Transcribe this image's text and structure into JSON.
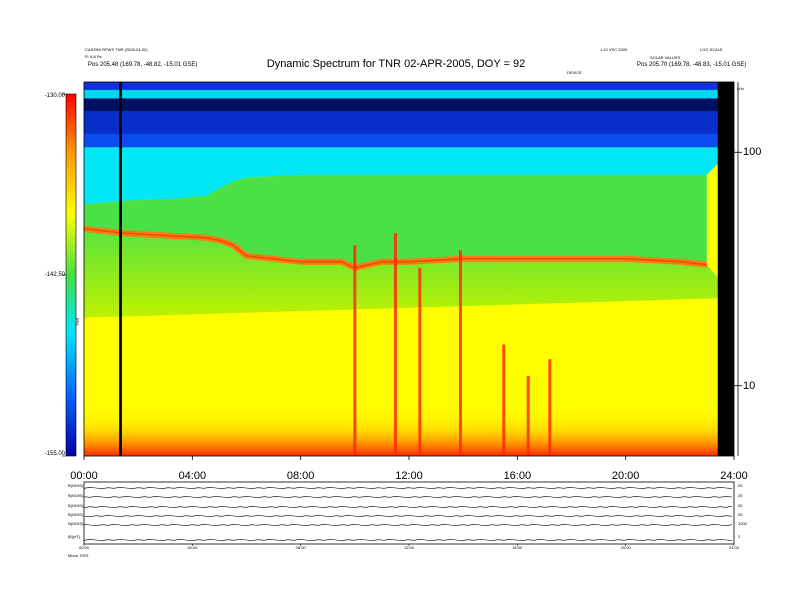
{
  "chart_data": {
    "type": "heatmap",
    "title": "Dynamic Spectrum for TNR 02-APR-2005, DOY = 92",
    "header_left": [
      "CASSINI RPWS TNR (2005-04-02)",
      "R: 8.8 Rs",
      "Pos  205.48 (169.78, -48.82, -15.01 GSE)"
    ],
    "header_right": [
      "1.10 VEC 2005",
      "LOG SCALE",
      "SOLAR VALUES",
      "Pos  205.70 (169.78, -48.83, -15.01 GSE)"
    ],
    "header_center_small": "DEVICE",
    "x_axis": {
      "range_hours": [
        0,
        24
      ],
      "ticks": [
        "00:00",
        "04:00",
        "08:00",
        "12:00",
        "16:00",
        "20:00",
        "24:00"
      ],
      "tick_values": [
        0,
        4,
        8,
        12,
        16,
        20,
        24
      ]
    },
    "colorbar": {
      "range": [
        -155,
        -130
      ],
      "ticks": [
        "-130.00",
        "-142.50",
        "-155.00"
      ],
      "tick_values": [
        -130,
        -142.5,
        -155
      ],
      "label": "TNR",
      "colors": [
        "#0000aa",
        "#0066ff",
        "#00e5ff",
        "#44e044",
        "#ffff00",
        "#ff9900",
        "#ff0000"
      ]
    },
    "frequency_axis": {
      "scale": "log",
      "ticks": [
        "100",
        "10"
      ],
      "tick_values": [
        100,
        10
      ],
      "range": [
        5,
        200
      ],
      "unit": "kHz"
    },
    "spectrum_boundaries": {
      "hours": [
        0,
        1.5,
        3,
        4.5,
        5,
        5.5,
        6,
        8,
        9.5,
        10,
        11,
        12,
        14,
        16,
        18,
        20,
        22,
        23
      ],
      "orange_band_khz": [
        47,
        45,
        44,
        43,
        42,
        40,
        36,
        34,
        34,
        32,
        34,
        34,
        35,
        35,
        35,
        35,
        34,
        33
      ],
      "cyan_lower_khz": [
        60,
        62,
        63,
        65,
        70,
        75,
        78,
        80,
        80,
        80,
        80,
        80,
        80,
        80,
        80,
        80,
        80,
        80
      ]
    },
    "spikes": [
      {
        "hour": 10.0,
        "top_khz": 40
      },
      {
        "hour": 11.5,
        "top_khz": 45
      },
      {
        "hour": 12.4,
        "top_khz": 32
      },
      {
        "hour": 13.9,
        "top_khz": 38
      },
      {
        "hour": 15.5,
        "top_khz": 15
      },
      {
        "hour": 16.4,
        "top_khz": 11
      },
      {
        "hour": 17.2,
        "top_khz": 13
      }
    ],
    "data_gaps_hours": [
      [
        1.3,
        1.4
      ],
      [
        23.4,
        24
      ]
    ],
    "bottom_panels": {
      "labels_left": [
        "B(NOIS)",
        "B(NOIS)",
        "B(NOIS)",
        "B(NOIS)",
        "N(NOIS)",
        "|B|(nT)"
      ],
      "labels_right": [
        "25",
        "25",
        "25",
        "25",
        "1000",
        "2"
      ],
      "x_ticks": [
        "00:00",
        "04:00",
        "08:00",
        "12:00",
        "16:00",
        "20:00",
        "24:00"
      ],
      "footer": "Mbon.  ERS"
    }
  }
}
